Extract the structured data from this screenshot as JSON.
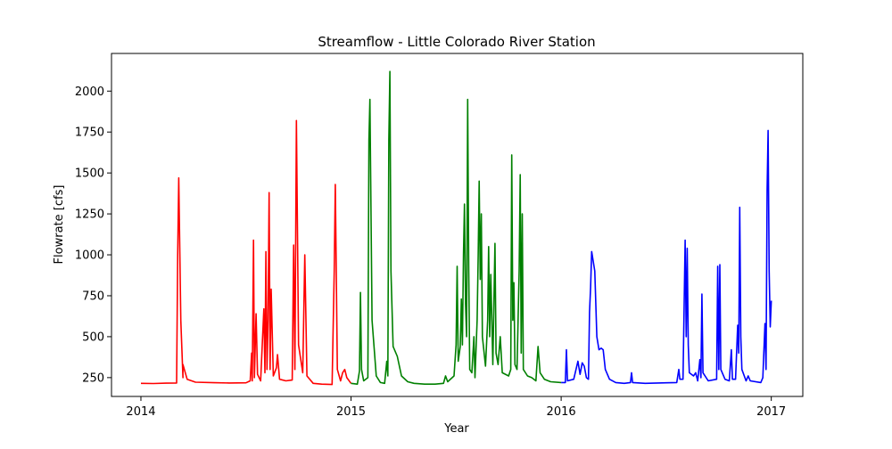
{
  "chart_data": {
    "type": "line",
    "title": "Streamflow - Little Colorado River Station",
    "xlabel": "Year",
    "ylabel": "Flowrate [cfs]",
    "xlim": [
      2013.86,
      2017.15
    ],
    "ylim": [
      135,
      2230
    ],
    "x_ticks": [
      2014,
      2015,
      2016,
      2017
    ],
    "x_tick_labels": [
      "2014",
      "2015",
      "2016",
      "2017"
    ],
    "y_ticks": [
      250,
      500,
      750,
      1000,
      1250,
      1500,
      1750,
      2000
    ],
    "y_tick_labels": [
      "250",
      "500",
      "750",
      "1000",
      "1250",
      "1500",
      "1750",
      "2000"
    ],
    "grid": false,
    "legend": "none",
    "series": [
      {
        "color": "#ff0000",
        "points": [
          [
            2014.0,
            215
          ],
          [
            2014.06,
            214
          ],
          [
            2014.12,
            216
          ],
          [
            2014.17,
            217
          ],
          [
            2014.175,
            1000
          ],
          [
            2014.18,
            1470
          ],
          [
            2014.19,
            600
          ],
          [
            2014.2,
            250
          ],
          [
            2014.2,
            330
          ],
          [
            2014.22,
            240
          ],
          [
            2014.26,
            222
          ],
          [
            2014.35,
            219
          ],
          [
            2014.42,
            217
          ],
          [
            2014.5,
            218
          ],
          [
            2014.52,
            230
          ],
          [
            2014.527,
            400
          ],
          [
            2014.53,
            230
          ],
          [
            2014.536,
            1090
          ],
          [
            2014.54,
            250
          ],
          [
            2014.548,
            640
          ],
          [
            2014.555,
            270
          ],
          [
            2014.57,
            230
          ],
          [
            2014.585,
            670
          ],
          [
            2014.59,
            280
          ],
          [
            2014.595,
            1020
          ],
          [
            2014.6,
            300
          ],
          [
            2014.605,
            600
          ],
          [
            2014.61,
            1380
          ],
          [
            2014.615,
            300
          ],
          [
            2014.62,
            790
          ],
          [
            2014.63,
            260
          ],
          [
            2014.645,
            310
          ],
          [
            2014.65,
            390
          ],
          [
            2014.66,
            240
          ],
          [
            2014.69,
            230
          ],
          [
            2014.72,
            235
          ],
          [
            2014.727,
            1060
          ],
          [
            2014.733,
            300
          ],
          [
            2014.74,
            1820
          ],
          [
            2014.75,
            450
          ],
          [
            2014.77,
            280
          ],
          [
            2014.78,
            1000
          ],
          [
            2014.79,
            260
          ],
          [
            2014.82,
            215
          ],
          [
            2014.86,
            210
          ],
          [
            2014.91,
            208
          ],
          [
            2014.92,
            900
          ],
          [
            2014.925,
            1430
          ],
          [
            2014.935,
            300
          ],
          [
            2014.95,
            230
          ],
          [
            2014.96,
            280
          ],
          [
            2014.97,
            300
          ],
          [
            2014.98,
            250
          ],
          [
            2015.0,
            215
          ]
        ]
      },
      {
        "color": "#008000",
        "points": [
          [
            2015.0,
            215
          ],
          [
            2015.03,
            210
          ],
          [
            2015.04,
            290
          ],
          [
            2015.045,
            770
          ],
          [
            2015.05,
            300
          ],
          [
            2015.06,
            230
          ],
          [
            2015.08,
            250
          ],
          [
            2015.085,
            1700
          ],
          [
            2015.09,
            1950
          ],
          [
            2015.1,
            600
          ],
          [
            2015.12,
            260
          ],
          [
            2015.14,
            220
          ],
          [
            2015.16,
            215
          ],
          [
            2015.17,
            350
          ],
          [
            2015.175,
            260
          ],
          [
            2015.18,
            1700
          ],
          [
            2015.185,
            2120
          ],
          [
            2015.19,
            900
          ],
          [
            2015.2,
            440
          ],
          [
            2015.22,
            380
          ],
          [
            2015.24,
            260
          ],
          [
            2015.27,
            225
          ],
          [
            2015.3,
            215
          ],
          [
            2015.35,
            210
          ],
          [
            2015.4,
            210
          ],
          [
            2015.44,
            215
          ],
          [
            2015.45,
            260
          ],
          [
            2015.46,
            225
          ],
          [
            2015.49,
            260
          ],
          [
            2015.5,
            450
          ],
          [
            2015.505,
            930
          ],
          [
            2015.51,
            350
          ],
          [
            2015.52,
            440
          ],
          [
            2015.525,
            730
          ],
          [
            2015.53,
            450
          ],
          [
            2015.535,
            1000
          ],
          [
            2015.54,
            1310
          ],
          [
            2015.545,
            700
          ],
          [
            2015.55,
            500
          ],
          [
            2015.555,
            1950
          ],
          [
            2015.56,
            900
          ],
          [
            2015.565,
            300
          ],
          [
            2015.575,
            280
          ],
          [
            2015.585,
            500
          ],
          [
            2015.59,
            250
          ],
          [
            2015.6,
            600
          ],
          [
            2015.605,
            1000
          ],
          [
            2015.61,
            1450
          ],
          [
            2015.615,
            850
          ],
          [
            2015.62,
            1250
          ],
          [
            2015.625,
            500
          ],
          [
            2015.64,
            320
          ],
          [
            2015.65,
            600
          ],
          [
            2015.655,
            1050
          ],
          [
            2015.66,
            500
          ],
          [
            2015.665,
            880
          ],
          [
            2015.67,
            600
          ],
          [
            2015.675,
            330
          ],
          [
            2015.68,
            700
          ],
          [
            2015.685,
            1070
          ],
          [
            2015.69,
            400
          ],
          [
            2015.7,
            330
          ],
          [
            2015.71,
            500
          ],
          [
            2015.72,
            280
          ],
          [
            2015.75,
            260
          ],
          [
            2015.76,
            300
          ],
          [
            2015.765,
            1610
          ],
          [
            2015.77,
            600
          ],
          [
            2015.775,
            830
          ],
          [
            2015.78,
            330
          ],
          [
            2015.79,
            300
          ],
          [
            2015.8,
            900
          ],
          [
            2015.805,
            1490
          ],
          [
            2015.81,
            400
          ],
          [
            2015.815,
            1250
          ],
          [
            2015.82,
            300
          ],
          [
            2015.84,
            260
          ],
          [
            2015.86,
            250
          ],
          [
            2015.88,
            230
          ],
          [
            2015.89,
            440
          ],
          [
            2015.9,
            280
          ],
          [
            2015.92,
            240
          ],
          [
            2015.95,
            225
          ],
          [
            2016.0,
            220
          ]
        ]
      },
      {
        "color": "#0000ff",
        "points": [
          [
            2016.0,
            220
          ],
          [
            2016.02,
            220
          ],
          [
            2016.025,
            420
          ],
          [
            2016.03,
            230
          ],
          [
            2016.06,
            240
          ],
          [
            2016.08,
            350
          ],
          [
            2016.09,
            270
          ],
          [
            2016.1,
            340
          ],
          [
            2016.11,
            320
          ],
          [
            2016.12,
            250
          ],
          [
            2016.13,
            240
          ],
          [
            2016.135,
            650
          ],
          [
            2016.14,
            800
          ],
          [
            2016.145,
            1020
          ],
          [
            2016.16,
            900
          ],
          [
            2016.17,
            500
          ],
          [
            2016.18,
            420
          ],
          [
            2016.19,
            430
          ],
          [
            2016.2,
            420
          ],
          [
            2016.21,
            300
          ],
          [
            2016.23,
            240
          ],
          [
            2016.26,
            220
          ],
          [
            2016.3,
            215
          ],
          [
            2016.33,
            220
          ],
          [
            2016.335,
            280
          ],
          [
            2016.34,
            220
          ],
          [
            2016.4,
            215
          ],
          [
            2016.5,
            218
          ],
          [
            2016.55,
            220
          ],
          [
            2016.56,
            300
          ],
          [
            2016.565,
            240
          ],
          [
            2016.58,
            240
          ],
          [
            2016.59,
            1090
          ],
          [
            2016.595,
            500
          ],
          [
            2016.6,
            1040
          ],
          [
            2016.605,
            450
          ],
          [
            2016.61,
            280
          ],
          [
            2016.63,
            260
          ],
          [
            2016.64,
            280
          ],
          [
            2016.65,
            230
          ],
          [
            2016.66,
            360
          ],
          [
            2016.665,
            250
          ],
          [
            2016.67,
            760
          ],
          [
            2016.675,
            280
          ],
          [
            2016.7,
            230
          ],
          [
            2016.74,
            240
          ],
          [
            2016.745,
            930
          ],
          [
            2016.75,
            300
          ],
          [
            2016.755,
            940
          ],
          [
            2016.76,
            300
          ],
          [
            2016.78,
            240
          ],
          [
            2016.8,
            230
          ],
          [
            2016.81,
            420
          ],
          [
            2016.815,
            240
          ],
          [
            2016.83,
            240
          ],
          [
            2016.84,
            570
          ],
          [
            2016.845,
            400
          ],
          [
            2016.85,
            1290
          ],
          [
            2016.855,
            500
          ],
          [
            2016.86,
            300
          ],
          [
            2016.88,
            230
          ],
          [
            2016.89,
            260
          ],
          [
            2016.9,
            230
          ],
          [
            2016.95,
            220
          ],
          [
            2016.96,
            250
          ],
          [
            2016.97,
            580
          ],
          [
            2016.975,
            300
          ],
          [
            2016.98,
            1400
          ],
          [
            2016.985,
            1760
          ],
          [
            2016.99,
            900
          ],
          [
            2016.995,
            560
          ],
          [
            2017.0,
            720
          ]
        ]
      }
    ]
  }
}
